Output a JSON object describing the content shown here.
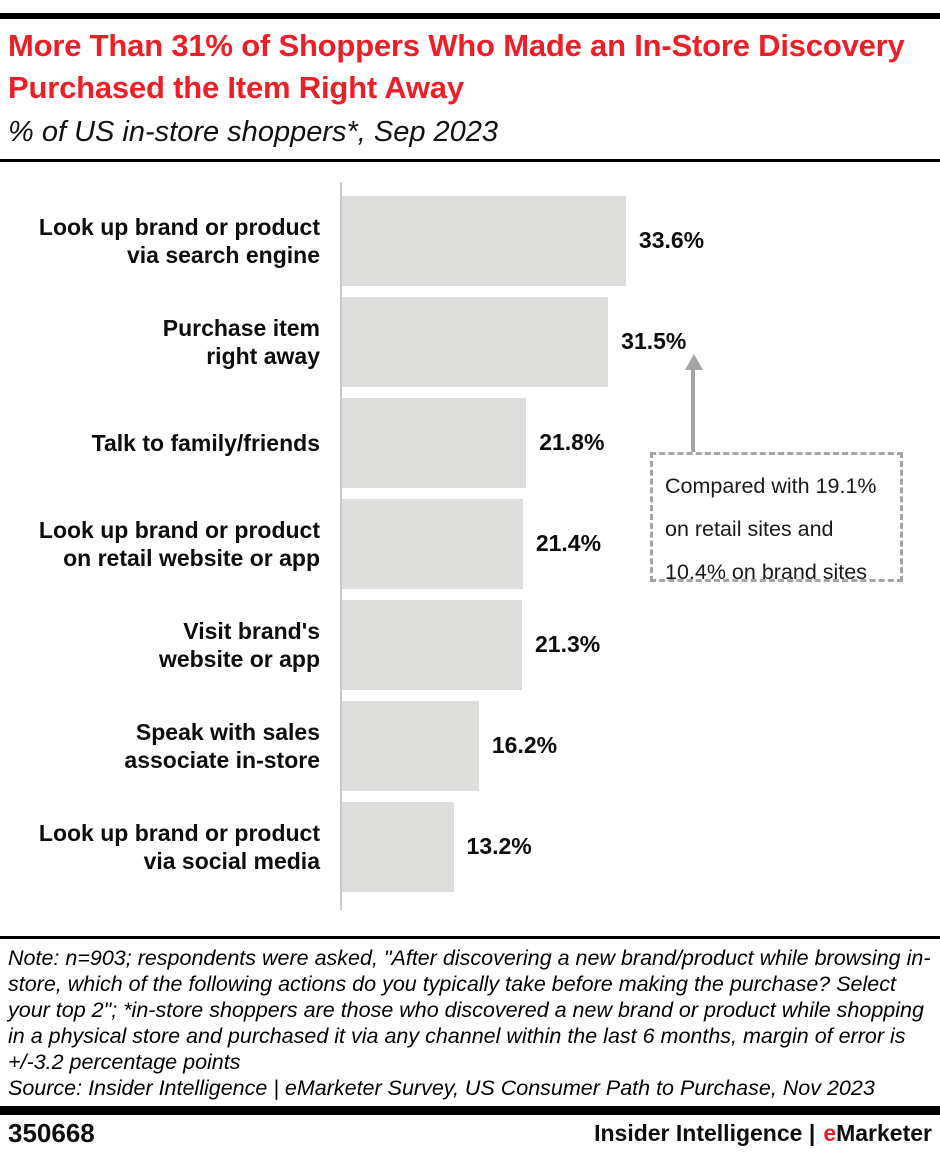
{
  "header": {
    "title": "More Than 31% of Shoppers Who Made an In-Store Discovery Purchased the Item Right Away",
    "subtitle": "% of US in-store shoppers*, Sep 2023"
  },
  "colors": {
    "accent_red": "#EC1E27",
    "bar_fill": "#DDDDDC",
    "axis_line": "#C8C8C8",
    "annotation_gray": "#A5A5A5"
  },
  "chart_data": {
    "type": "bar",
    "orientation": "horizontal",
    "title": "More Than 31% of Shoppers Who Made an In-Store Discovery Purchased the Item Right Away",
    "subtitle_unit": "% of US in-store shoppers*, Sep 2023",
    "categories": [
      "Look up brand or product\nvia search engine",
      "Purchase item\nright away",
      "Talk to family/friends",
      "Look up brand or product\non retail website or app",
      "Visit brand's\nwebsite or app",
      "Speak with sales\nassociate in-store",
      "Look up brand or product\nvia social media"
    ],
    "values": [
      33.6,
      31.5,
      21.8,
      21.4,
      21.3,
      16.2,
      13.2
    ],
    "value_labels": [
      "33.6%",
      "31.5%",
      "21.8%",
      "21.4%",
      "21.3%",
      "16.2%",
      "13.2%"
    ],
    "xlim": [
      0,
      40
    ],
    "gridlines": false,
    "legend": "none",
    "annotation": {
      "text": "Compared with 19.1%\non retail sites and\n10.4% on brand sites",
      "points_to": "Purchase item right away",
      "style": "dashed-box-with-up-arrow"
    }
  },
  "note": {
    "text": "Note: n=903; respondents were asked, \"After discovering a new brand/product while browsing in-store, which of the following actions do you typically take before making the purchase? Select your top 2\"; *in-store shoppers are those who discovered a new brand or product while shopping in a physical store and purchased it via any channel within the last 6 months, margin of error is +/-3.2 percentage points",
    "source": "Source: Insider Intelligence | eMarketer Survey, US Consumer Path to Purchase, Nov 2023"
  },
  "footer": {
    "chart_id": "350668",
    "attribution_prefix": "Insider Intelligence |",
    "brand_e": "e",
    "brand_rest": "Marketer"
  }
}
